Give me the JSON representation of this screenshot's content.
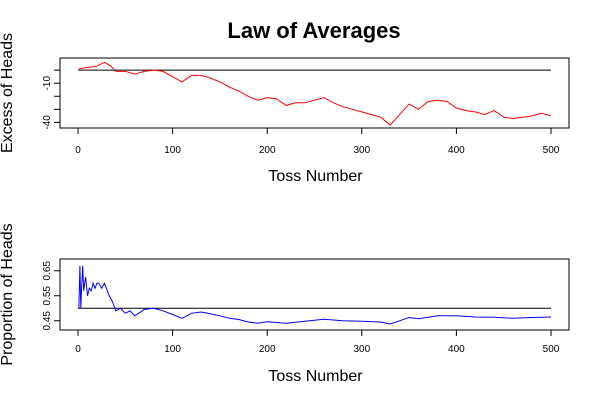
{
  "figure": {
    "title": "Law of Averages"
  },
  "chart_data": [
    {
      "type": "line",
      "title": "",
      "xlabel": "Toss Number",
      "ylabel": "Excess of Heads",
      "xlim": [
        0,
        500
      ],
      "ylim": [
        -42,
        7
      ],
      "x_ticks": [
        0,
        100,
        200,
        300,
        400,
        500
      ],
      "y_ticks": [
        -40,
        -30,
        -20,
        -10,
        0
      ],
      "y_tick_labels_shown": [
        "-40",
        "-10"
      ],
      "reference_line": 0,
      "grid": false,
      "legend": "none",
      "series": [
        {
          "color": "#ff0000",
          "x": [
            1,
            10,
            20,
            28,
            35,
            40,
            50,
            60,
            70,
            80,
            90,
            100,
            110,
            120,
            130,
            140,
            150,
            160,
            170,
            180,
            190,
            200,
            210,
            220,
            230,
            240,
            250,
            260,
            270,
            280,
            290,
            300,
            310,
            320,
            330,
            340,
            350,
            360,
            370,
            380,
            390,
            400,
            410,
            420,
            430,
            440,
            450,
            460,
            470,
            480,
            490,
            500
          ],
          "values": [
            1,
            2,
            3,
            6,
            3,
            -1,
            -1,
            -3,
            -1,
            0,
            -1,
            -5,
            -9,
            -4,
            -4,
            -6,
            -9,
            -13,
            -16,
            -20,
            -23,
            -21,
            -22,
            -27,
            -25,
            -25,
            -23,
            -21,
            -25,
            -28,
            -30,
            -32,
            -34,
            -36,
            -42,
            -34,
            -26,
            -30,
            -24,
            -23,
            -24,
            -29,
            -31,
            -32,
            -34,
            -31,
            -36,
            -37,
            -36,
            -35,
            -33,
            -35
          ]
        }
      ]
    },
    {
      "type": "line",
      "title": "",
      "xlabel": "Toss Number",
      "ylabel": "Proportion of Heads",
      "xlim": [
        0,
        500
      ],
      "ylim": [
        0.425,
        0.685
      ],
      "x_ticks": [
        0,
        100,
        200,
        300,
        400,
        500
      ],
      "y_ticks": [
        0.45,
        0.55,
        0.65
      ],
      "y_tick_labels_shown": [
        "0.45",
        "0.55",
        "0.65"
      ],
      "reference_line": 0.5,
      "grid": false,
      "legend": "none",
      "series": [
        {
          "color": "#0000ff",
          "x": [
            1,
            2,
            3,
            4,
            5,
            6,
            8,
            10,
            12,
            14,
            16,
            18,
            20,
            22,
            25,
            28,
            30,
            33,
            36,
            40,
            45,
            50,
            55,
            60,
            70,
            80,
            90,
            100,
            110,
            120,
            130,
            140,
            150,
            160,
            170,
            180,
            190,
            200,
            220,
            240,
            260,
            280,
            300,
            320,
            330,
            340,
            350,
            360,
            380,
            400,
            420,
            440,
            460,
            480,
            500
          ],
          "values": [
            0.5,
            0.67,
            0.5,
            0.6,
            0.67,
            0.57,
            0.625,
            0.55,
            0.58,
            0.57,
            0.6,
            0.58,
            0.6,
            0.6,
            0.58,
            0.6,
            0.58,
            0.55,
            0.53,
            0.49,
            0.5,
            0.48,
            0.49,
            0.47,
            0.495,
            0.5,
            0.49,
            0.475,
            0.46,
            0.48,
            0.485,
            0.478,
            0.47,
            0.46,
            0.455,
            0.445,
            0.44,
            0.446,
            0.44,
            0.448,
            0.456,
            0.45,
            0.448,
            0.445,
            0.437,
            0.45,
            0.463,
            0.458,
            0.47,
            0.47,
            0.465,
            0.464,
            0.46,
            0.463,
            0.465
          ]
        }
      ]
    }
  ]
}
